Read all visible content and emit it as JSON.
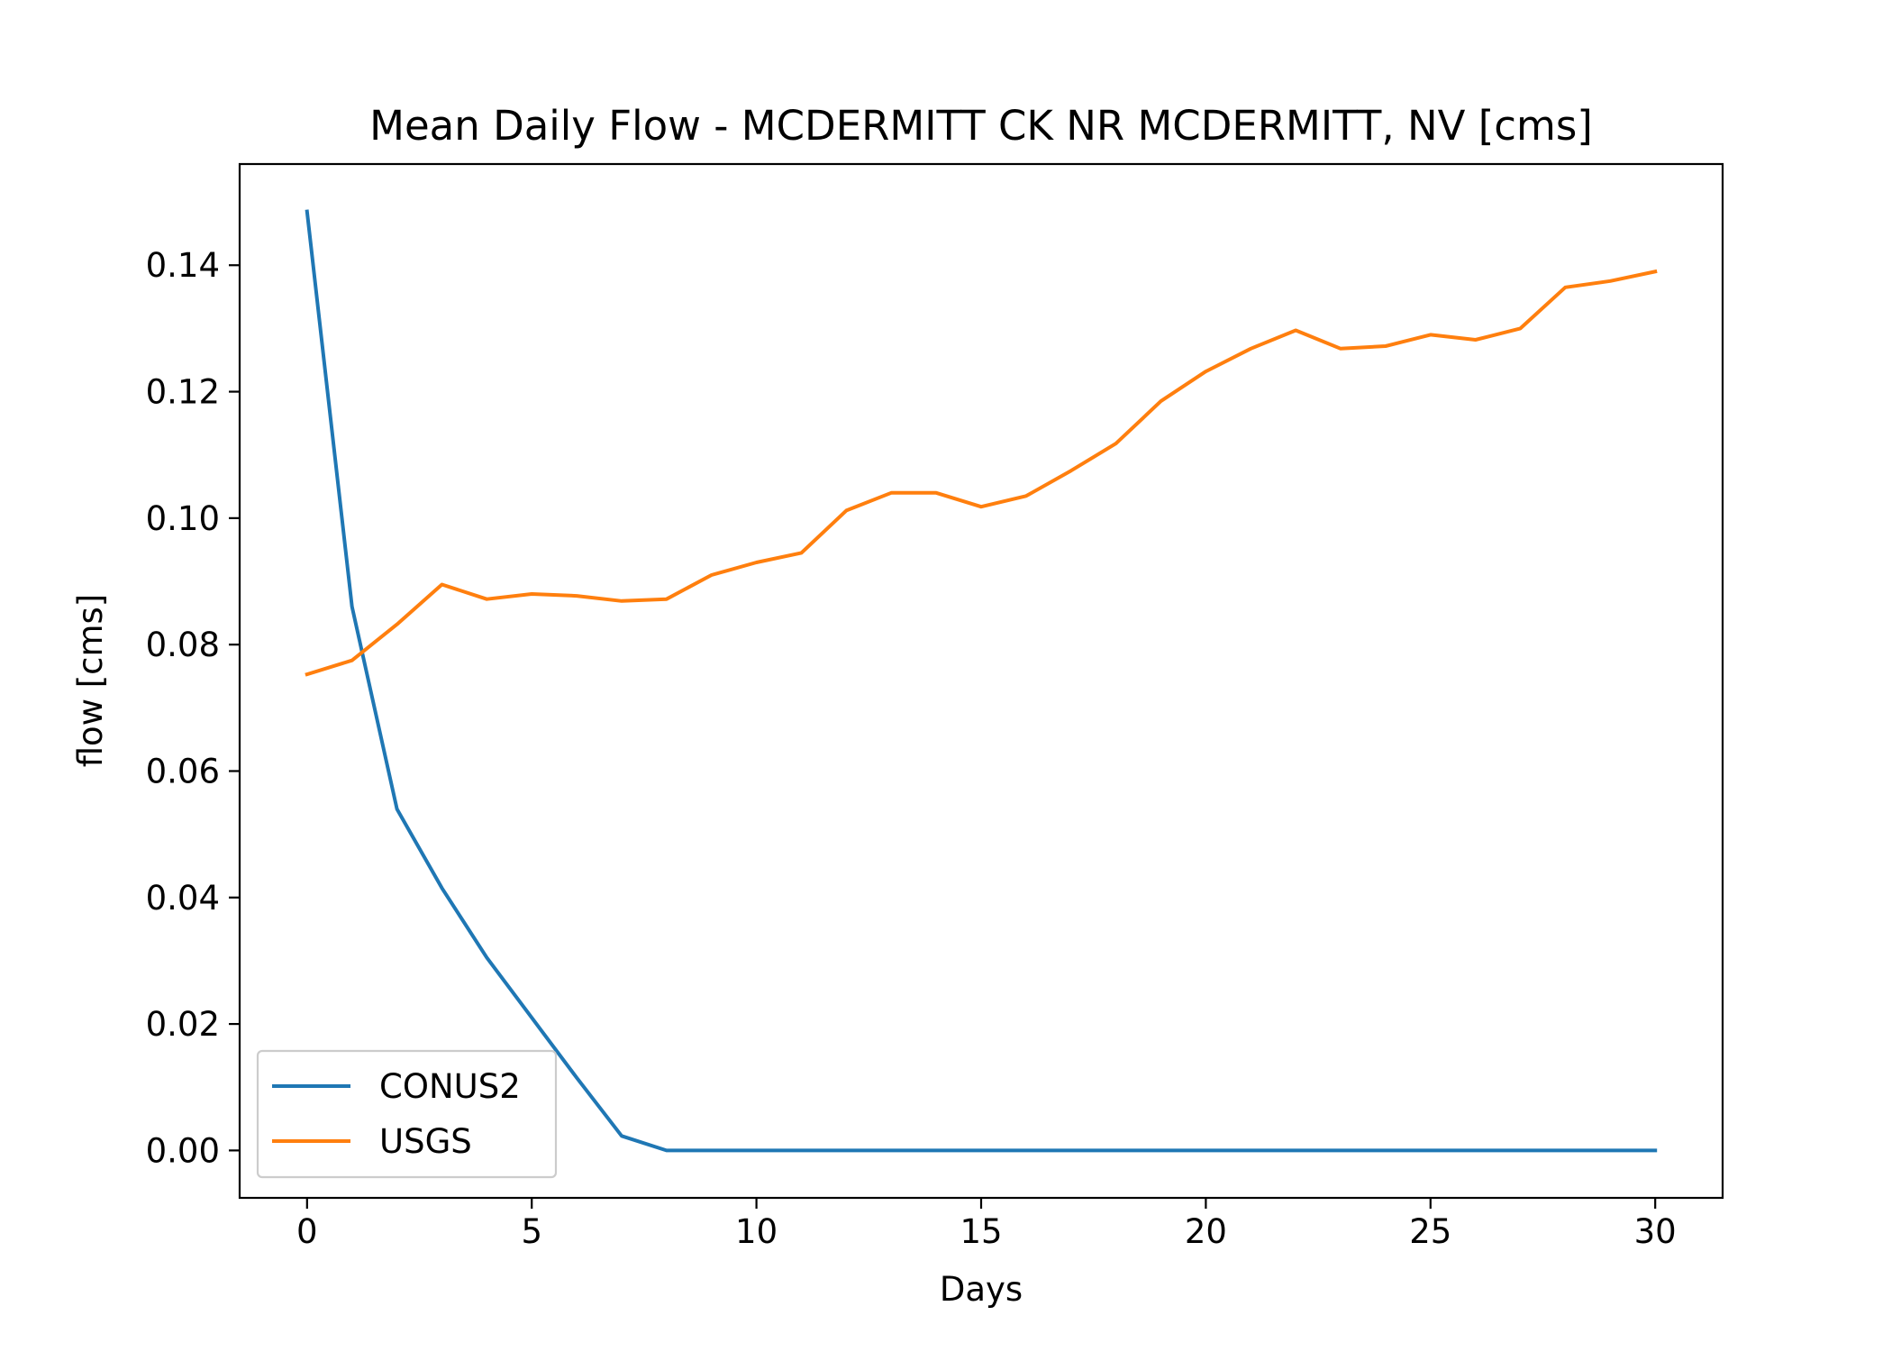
{
  "chart_data": {
    "type": "line",
    "title": "Mean Daily Flow - MCDERMITT CK NR MCDERMITT, NV [cms]",
    "xlabel": "Days",
    "ylabel": "flow [cms]",
    "xlim": [
      -1.5,
      31.5
    ],
    "ylim": [
      -0.0075,
      0.156
    ],
    "xticks": [
      0,
      5,
      10,
      15,
      20,
      25,
      30
    ],
    "xtick_labels": [
      "0",
      "5",
      "10",
      "15",
      "20",
      "25",
      "30"
    ],
    "yticks": [
      0.0,
      0.02,
      0.04,
      0.06,
      0.08,
      0.1,
      0.12,
      0.14
    ],
    "ytick_labels": [
      "0.00",
      "0.02",
      "0.04",
      "0.06",
      "0.08",
      "0.10",
      "0.12",
      "0.14"
    ],
    "grid": false,
    "legend_position": "lower-left",
    "x": [
      0,
      1,
      2,
      3,
      4,
      5,
      6,
      7,
      8,
      9,
      10,
      11,
      12,
      13,
      14,
      15,
      16,
      17,
      18,
      19,
      20,
      21,
      22,
      23,
      24,
      25,
      26,
      27,
      28,
      29,
      30
    ],
    "series": [
      {
        "name": "CONUS2",
        "color": "#1f77b4",
        "values": [
          0.1485,
          0.086,
          0.054,
          0.0415,
          0.0305,
          0.021,
          0.0115,
          0.0023,
          0.0,
          0.0,
          0.0,
          0.0,
          0.0,
          0.0,
          0.0,
          0.0,
          0.0,
          0.0,
          0.0,
          0.0,
          0.0,
          0.0,
          0.0,
          0.0,
          0.0,
          0.0,
          0.0,
          0.0,
          0.0,
          0.0,
          0.0
        ]
      },
      {
        "name": "USGS",
        "color": "#ff7f0e",
        "values": [
          0.0753,
          0.0775,
          0.0832,
          0.0895,
          0.0872,
          0.088,
          0.0877,
          0.0869,
          0.0872,
          0.091,
          0.093,
          0.0945,
          0.1012,
          0.104,
          0.104,
          0.1018,
          0.1035,
          0.1075,
          0.1118,
          0.1185,
          0.1232,
          0.1268,
          0.1297,
          0.1268,
          0.1272,
          0.129,
          0.1282,
          0.13,
          0.1365,
          0.1375,
          0.139
        ]
      }
    ]
  }
}
